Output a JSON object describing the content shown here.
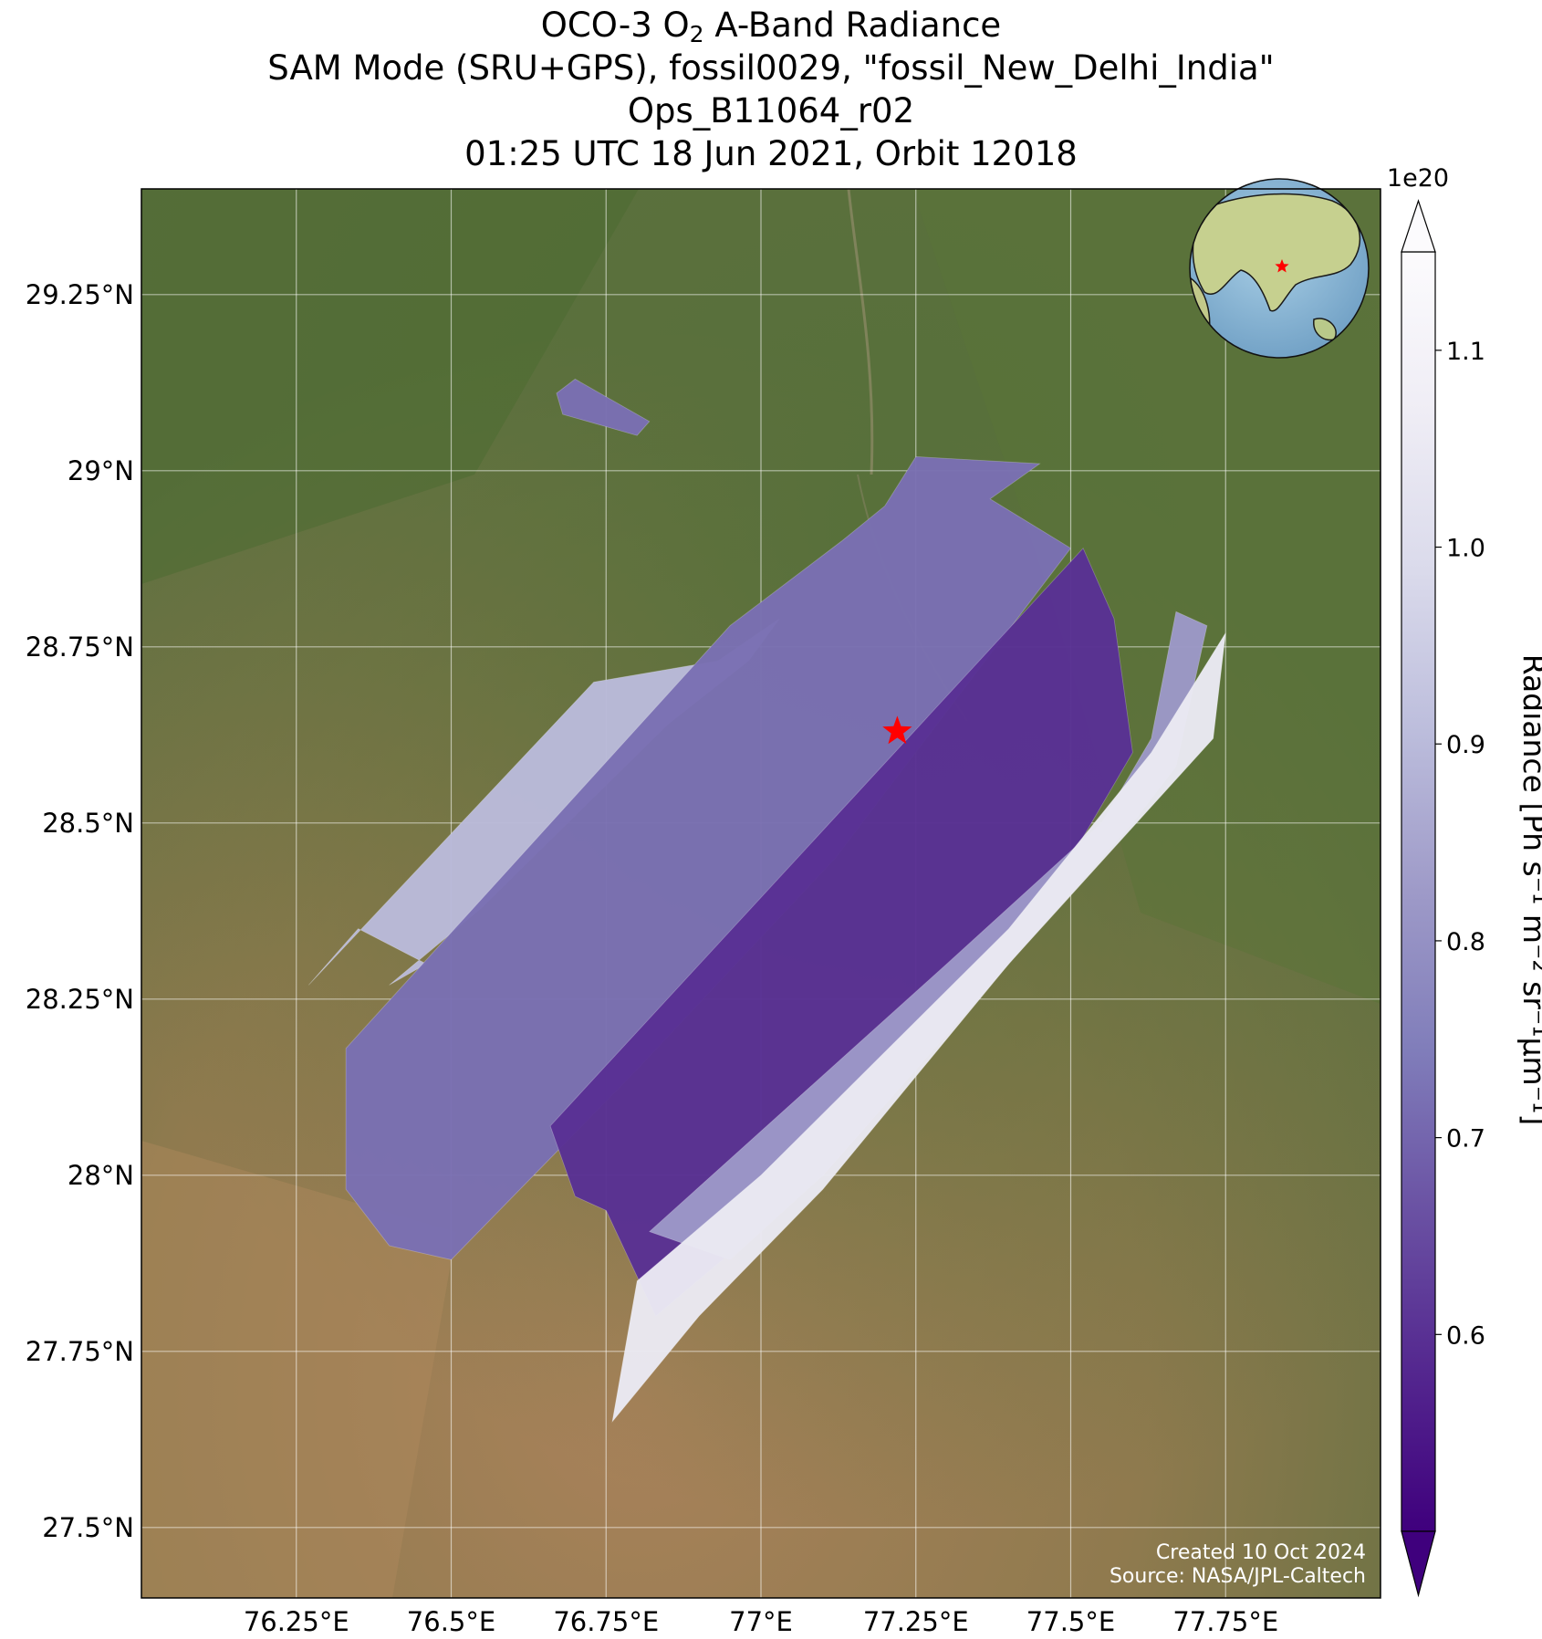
{
  "title": {
    "line1_pre": "OCO-3 O",
    "line1_sub": "2",
    "line1_post": " A-Band Radiance",
    "line2": "SAM Mode (SRU+GPS), fossil0029, \"fossil_New_Delhi_India\"",
    "line3": "Ops_B11064_r02",
    "line4": "01:25 UTC 18 Jun 2021, Orbit 12018"
  },
  "map": {
    "lon_range": [
      76.0,
      78.0
    ],
    "lat_range": [
      27.4,
      29.4
    ],
    "lat_ticks": [
      {
        "value": 29.25,
        "label": "29.25°N"
      },
      {
        "value": 29.0,
        "label": "29°N"
      },
      {
        "value": 28.75,
        "label": "28.75°N"
      },
      {
        "value": 28.5,
        "label": "28.5°N"
      },
      {
        "value": 28.25,
        "label": "28.25°N"
      },
      {
        "value": 28.0,
        "label": "28°N"
      },
      {
        "value": 27.75,
        "label": "27.75°N"
      },
      {
        "value": 27.5,
        "label": "27.5°N"
      }
    ],
    "lon_ticks": [
      {
        "value": 76.25,
        "label": "76.25°E"
      },
      {
        "value": 76.5,
        "label": "76.5°E"
      },
      {
        "value": 76.75,
        "label": "76.75°E"
      },
      {
        "value": 77.0,
        "label": "77°E"
      },
      {
        "value": 77.25,
        "label": "77.25°E"
      },
      {
        "value": 77.5,
        "label": "77.5°E"
      },
      {
        "value": 77.75,
        "label": "77.75°E"
      }
    ],
    "target_marker": {
      "name": "fossil_New_Delhi_India",
      "lon": 77.22,
      "lat": 28.63,
      "color": "#ff0000"
    },
    "basemap_colors": {
      "vegetation": "#4c6b34",
      "arid": "#a07f5a"
    },
    "gridlines": true
  },
  "swaths": [
    {
      "name": "swath-1",
      "polygon": [
        [
          76.27,
          28.27
        ],
        [
          76.73,
          28.7
        ],
        [
          76.93,
          28.73
        ],
        [
          77.03,
          28.79
        ],
        [
          76.98,
          28.73
        ],
        [
          76.85,
          28.64
        ],
        [
          76.55,
          28.38
        ],
        [
          76.4,
          28.27
        ],
        [
          76.46,
          28.3
        ],
        [
          76.35,
          28.35
        ],
        [
          76.27,
          28.27
        ]
      ],
      "mean_radiance": 0.9
    },
    {
      "name": "swath-2",
      "polygon": [
        [
          76.33,
          28.18
        ],
        [
          76.95,
          28.78
        ],
        [
          77.13,
          28.9
        ],
        [
          77.2,
          28.95
        ],
        [
          77.25,
          29.02
        ],
        [
          77.45,
          29.01
        ],
        [
          77.37,
          28.96
        ],
        [
          77.5,
          28.89
        ],
        [
          77.12,
          28.45
        ],
        [
          76.8,
          28.15
        ],
        [
          76.5,
          27.88
        ],
        [
          76.4,
          27.9
        ],
        [
          76.33,
          27.98
        ],
        [
          76.33,
          28.18
        ]
      ],
      "mean_radiance": 0.72
    },
    {
      "name": "swath-3",
      "polygon": [
        [
          76.66,
          28.07
        ],
        [
          77.52,
          28.89
        ],
        [
          77.57,
          28.79
        ],
        [
          77.6,
          28.6
        ],
        [
          77.4,
          28.3
        ],
        [
          77.1,
          28.0
        ],
        [
          76.83,
          27.8
        ],
        [
          76.75,
          27.95
        ],
        [
          76.7,
          27.97
        ],
        [
          76.66,
          28.07
        ]
      ],
      "mean_radiance": 0.6
    },
    {
      "name": "swath-4",
      "polygon": [
        [
          76.82,
          27.92
        ],
        [
          77.3,
          28.3
        ],
        [
          77.55,
          28.5
        ],
        [
          77.63,
          28.62
        ],
        [
          77.67,
          28.8
        ],
        [
          77.72,
          28.78
        ],
        [
          77.67,
          28.58
        ],
        [
          77.6,
          28.5
        ],
        [
          77.4,
          28.3
        ],
        [
          77.1,
          28.0
        ],
        [
          76.95,
          27.88
        ],
        [
          76.82,
          27.92
        ]
      ],
      "mean_radiance": 0.82
    },
    {
      "name": "swath-5",
      "polygon": [
        [
          76.76,
          27.65
        ],
        [
          76.8,
          27.85
        ],
        [
          77.0,
          28.0
        ],
        [
          77.4,
          28.35
        ],
        [
          77.63,
          28.6
        ],
        [
          77.75,
          28.77
        ],
        [
          77.73,
          28.62
        ],
        [
          77.4,
          28.3
        ],
        [
          77.1,
          27.98
        ],
        [
          76.9,
          27.8
        ],
        [
          76.76,
          27.65
        ]
      ],
      "mean_radiance": 1.05
    },
    {
      "name": "swath-small",
      "polygon": [
        [
          76.67,
          29.11
        ],
        [
          76.7,
          29.13
        ],
        [
          76.82,
          29.07
        ],
        [
          76.8,
          29.05
        ],
        [
          76.68,
          29.08
        ],
        [
          76.67,
          29.11
        ]
      ],
      "mean_radiance": 0.72
    }
  ],
  "colorbar": {
    "label": "Radiance [Ph s⁻¹ m⁻² sr⁻¹μm⁻¹]",
    "exponent": "1e20",
    "range": [
      0.5,
      1.15
    ],
    "extend": "both",
    "ticks": [
      {
        "value": 0.6,
        "label": "0.6"
      },
      {
        "value": 0.7,
        "label": "0.7"
      },
      {
        "value": 0.8,
        "label": "0.8"
      },
      {
        "value": 0.9,
        "label": "0.9"
      },
      {
        "value": 1.0,
        "label": "1.0"
      },
      {
        "value": 1.1,
        "label": "1.1"
      }
    ],
    "colormap": [
      "#3f007d",
      "#54278f",
      "#6a51a3",
      "#807dba",
      "#9e9ac8",
      "#bcbddc",
      "#dadaeb",
      "#efedf5",
      "#fcfbfd"
    ]
  },
  "inset_globe": {
    "land_color": "#b9c98a",
    "ocean_color": "#8fb8d8",
    "marker_color": "#ff0000"
  },
  "credits": {
    "created": "Created 10 Oct 2024",
    "source": "Source: NASA/JPL-Caltech"
  }
}
